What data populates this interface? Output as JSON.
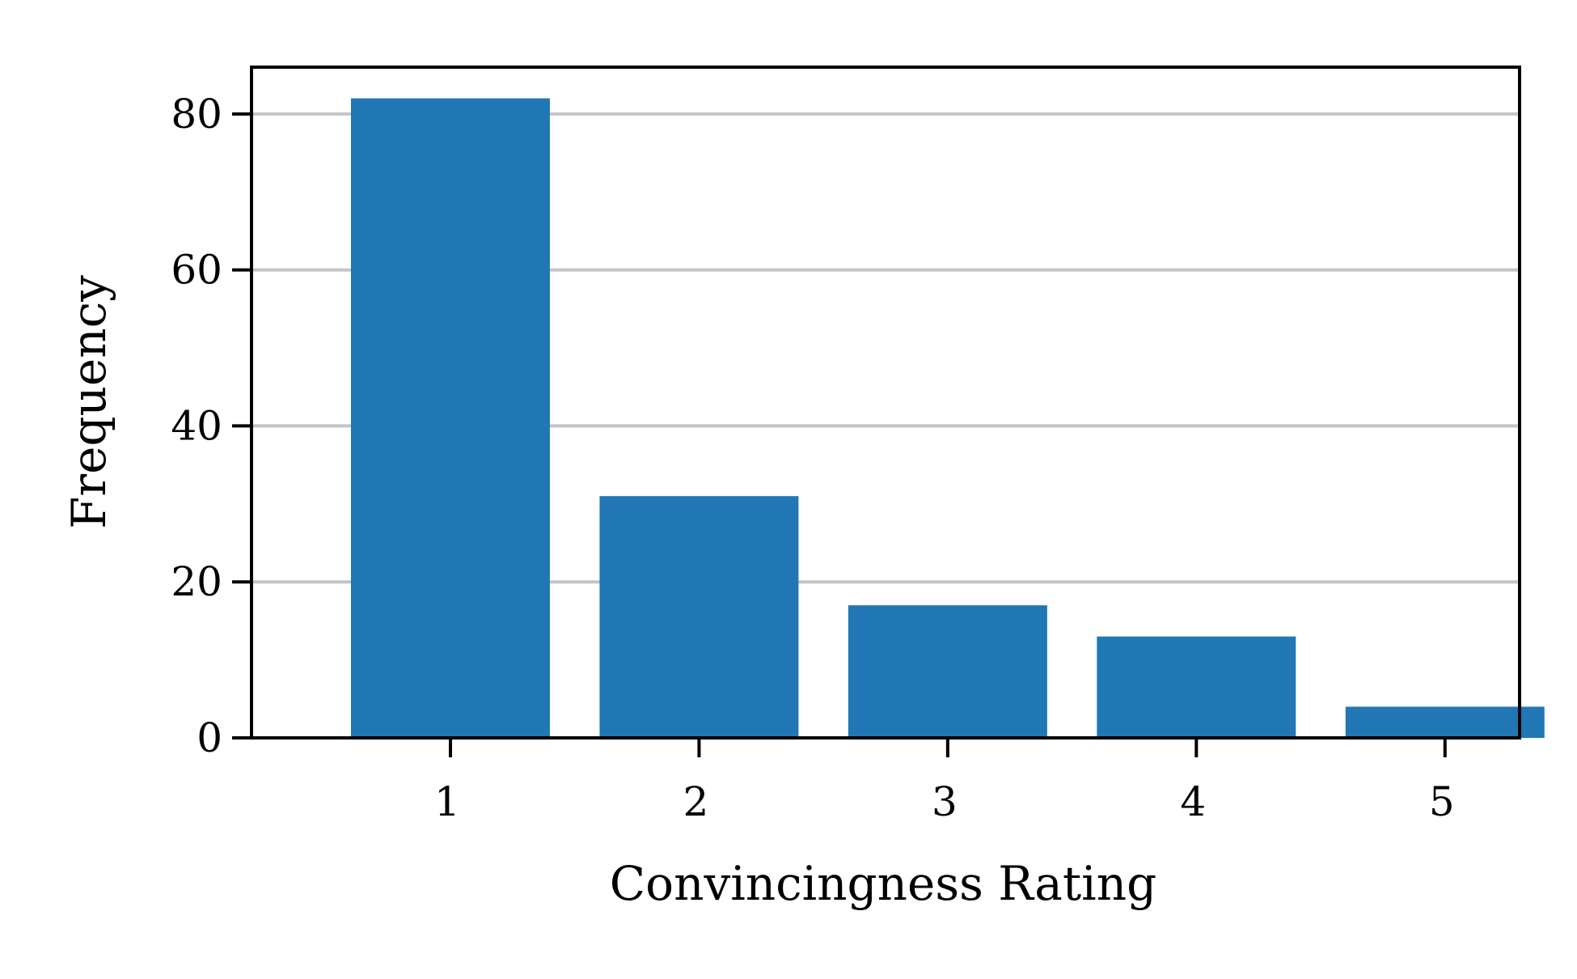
{
  "chart_data": {
    "type": "bar",
    "categories": [
      "1",
      "2",
      "3",
      "4",
      "5"
    ],
    "values": [
      82,
      31,
      17,
      13,
      4
    ],
    "xlabel": "Convincingness Rating",
    "ylabel": "Frequency",
    "ylim": [
      0,
      86
    ],
    "yticks": [
      0,
      20,
      40,
      60,
      80
    ],
    "grid": "horizontal",
    "bar_color": "#2077b4",
    "grid_color": "#c4c4c4"
  }
}
